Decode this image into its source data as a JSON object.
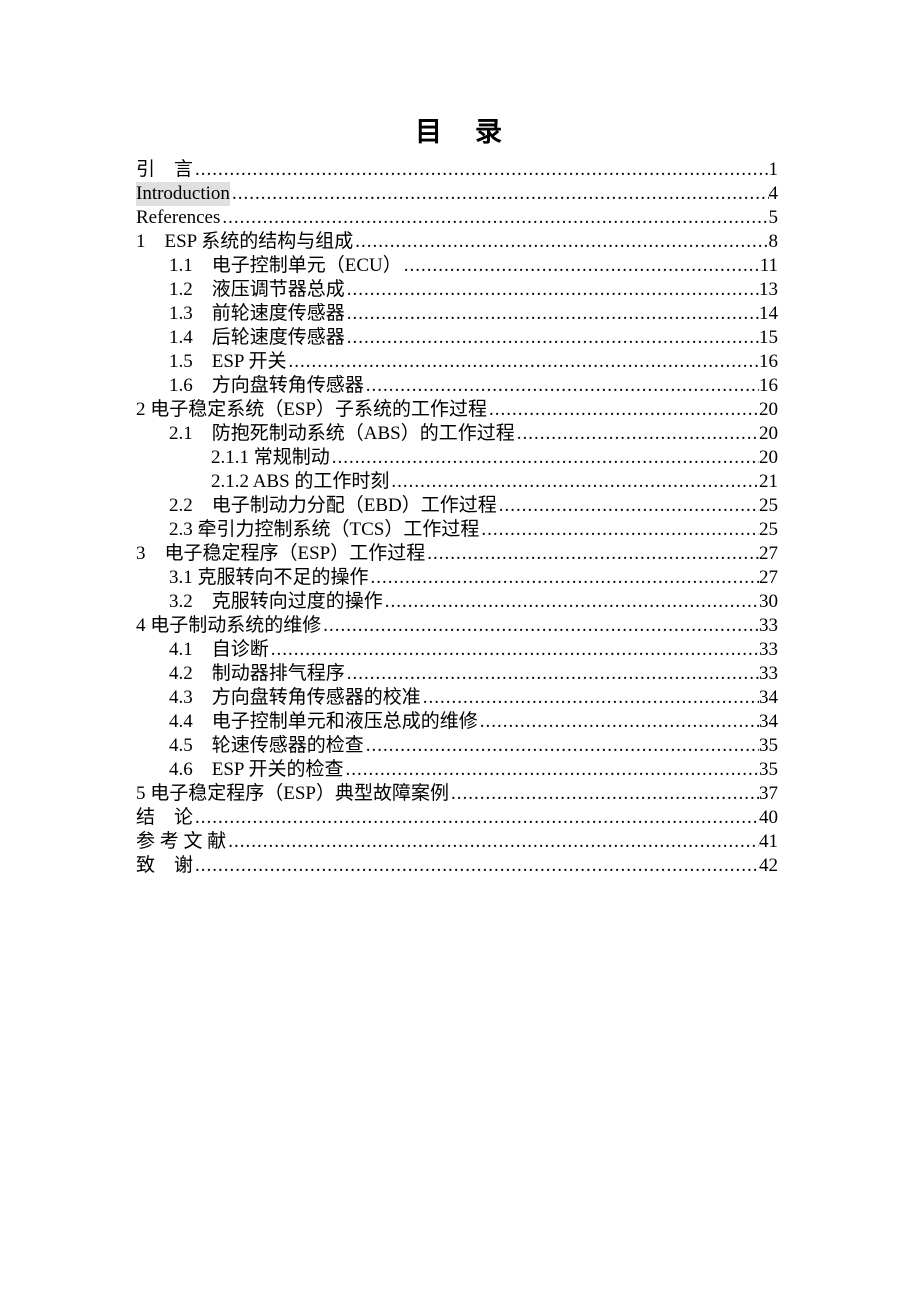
{
  "title": "目　录",
  "colors": {
    "text": "#000000",
    "background": "#ffffff",
    "introduction_highlight": "#e0e0e0"
  },
  "toc": {
    "entries": [
      {
        "label": "引　言",
        "page": "1",
        "indent": 0
      },
      {
        "label": "Introduction",
        "page": "4",
        "indent": 0,
        "highlight": true
      },
      {
        "label": "References",
        "page": "5",
        "indent": 0
      },
      {
        "label": "1　ESP 系统的结构与组成",
        "page": "8",
        "indent": 0
      },
      {
        "label": "1.1　电子控制单元（ECU）",
        "page": "11",
        "indent": 1
      },
      {
        "label": "1.2　液压调节器总成",
        "page": "13",
        "indent": 1
      },
      {
        "label": "1.3　前轮速度传感器",
        "page": "14",
        "indent": 1
      },
      {
        "label": "1.4　后轮速度传感器",
        "page": "15",
        "indent": 1
      },
      {
        "label": "1.5　ESP 开关",
        "page": "16",
        "indent": 1
      },
      {
        "label": "1.6　方向盘转角传感器",
        "page": "16",
        "indent": 1
      },
      {
        "label": "2 电子稳定系统（ESP）子系统的工作过程",
        "page": "20",
        "indent": 0
      },
      {
        "label": "2.1　防抱死制动系统（ABS）的工作过程",
        "page": "20",
        "indent": 1
      },
      {
        "label": "2.1.1 常规制动",
        "page": "20",
        "indent": 2
      },
      {
        "label": "2.1.2 ABS 的工作时刻",
        "page": "21",
        "indent": 2
      },
      {
        "label": "2.2　电子制动力分配（EBD）工作过程",
        "page": "25",
        "indent": 1
      },
      {
        "label": "2.3 牵引力控制系统（TCS）工作过程",
        "page": "25",
        "indent": 1
      },
      {
        "label": "3　电子稳定程序（ESP）工作过程",
        "page": "27",
        "indent": 0
      },
      {
        "label": "3.1 克服转向不足的操作",
        "page": "27",
        "indent": 1
      },
      {
        "label": "3.2　克服转向过度的操作",
        "page": "30",
        "indent": 1
      },
      {
        "label": "4 电子制动系统的维修",
        "page": "33",
        "indent": 0
      },
      {
        "label": "4.1　自诊断",
        "page": "33",
        "indent": 1
      },
      {
        "label": "4.2　制动器排气程序",
        "page": "33",
        "indent": 1
      },
      {
        "label": "4.3　方向盘转角传感器的校准",
        "page": "34",
        "indent": 1
      },
      {
        "label": "4.4　电子控制单元和液压总成的维修",
        "page": "34",
        "indent": 1
      },
      {
        "label": "4.5　轮速传感器的检查",
        "page": "35",
        "indent": 1
      },
      {
        "label": "4.6　ESP 开关的检查",
        "page": "35",
        "indent": 1
      },
      {
        "label": "5 电子稳定程序（ESP）典型故障案例",
        "page": "37",
        "indent": 0
      },
      {
        "label": "结　论",
        "page": "40",
        "indent": 0
      },
      {
        "label": "参 考 文 献",
        "page": "41",
        "indent": 0
      },
      {
        "label": "致　谢",
        "page": "42",
        "indent": 0
      }
    ]
  }
}
